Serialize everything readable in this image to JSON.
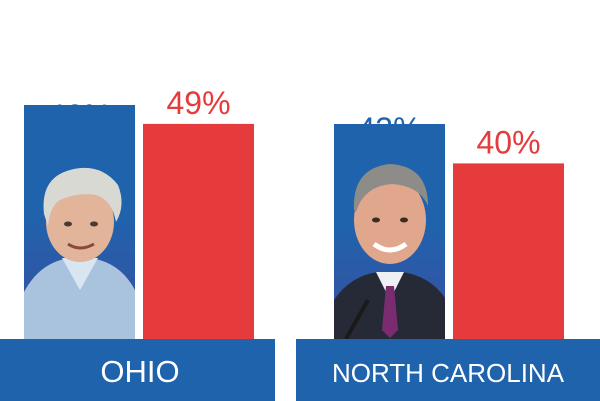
{
  "chart_data": {
    "type": "bar",
    "categories": [
      "OHIO",
      "NORTH CAROLINA"
    ],
    "series": [
      {
        "values": [
          46,
          43
        ],
        "labels": [
          "46%",
          "43%"
        ]
      },
      {
        "values": [
          49,
          40
        ],
        "labels": [
          "49%",
          "40%"
        ]
      }
    ],
    "ylim": [
      0,
      100
    ],
    "colors": {
      "blue": "#1f63ad",
      "red": "#e53b3c",
      "label_band": "#1f63ad",
      "label_text": "#ffffff"
    },
    "photos": [
      "person-photo",
      "person-photo"
    ]
  }
}
